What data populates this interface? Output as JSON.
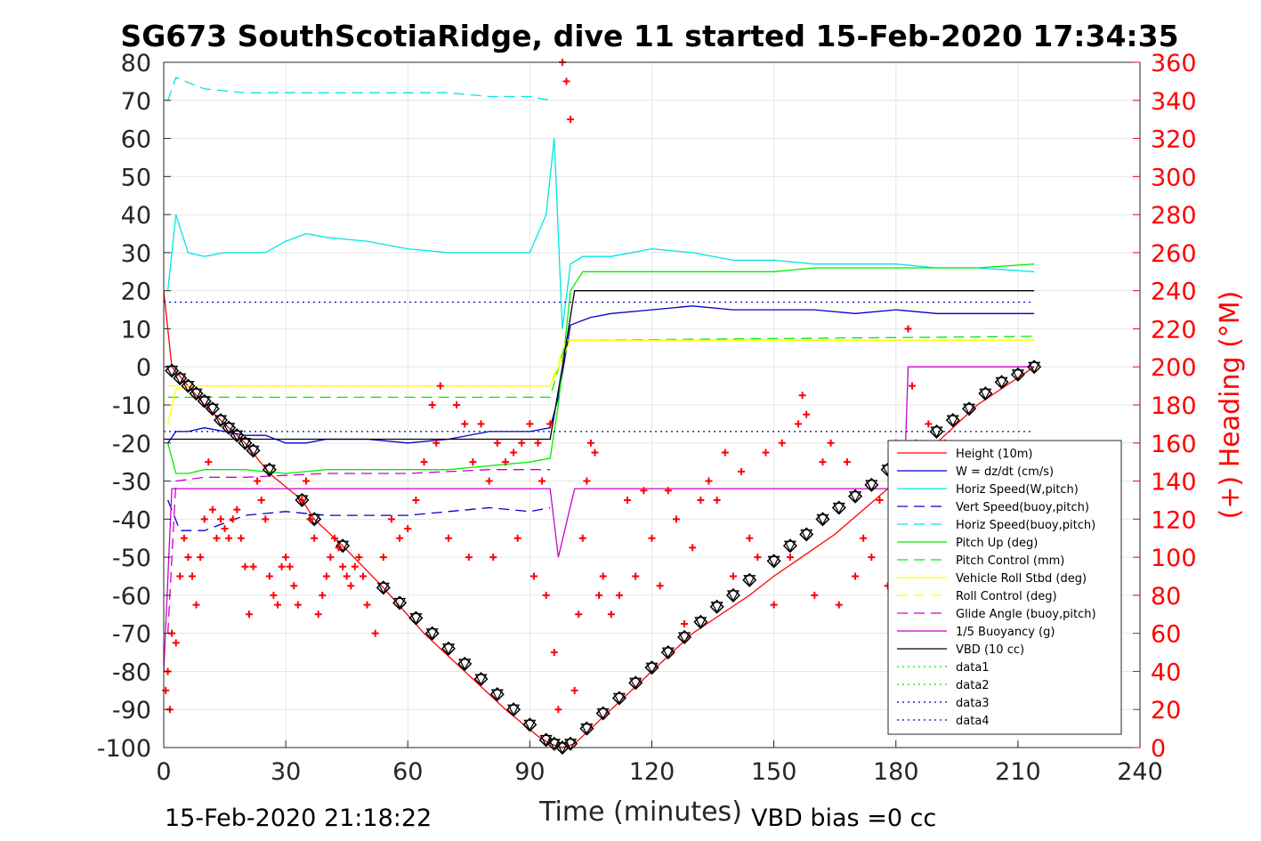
{
  "title": "SG673 SouthScotiaRidge, dive 11 started 15-Feb-2020 17:34:35",
  "footer": {
    "left": "15-Feb-2020 21:18:22",
    "right": "VBD bias =0 cc"
  },
  "colors": {
    "heading": "#ff0000",
    "height": "#ff0000",
    "w": "#0000cd",
    "horiz": "#00e5e5",
    "pitch": "#00ee00",
    "roll": "#ffff00",
    "glide": "#cc00cc",
    "vbd": "#000000",
    "data_green": "#00dd00",
    "data_blue": "#0000aa"
  },
  "chart_data": {
    "type": "line",
    "title": "SG673 SouthScotiaRidge, dive 11 started 15-Feb-2020 17:34:35",
    "xlabel": "Time (minutes)",
    "ylabel": "",
    "ylabel_right": "(+) Heading (°M)",
    "xlim": [
      0,
      240
    ],
    "ylim": [
      -100,
      80
    ],
    "ylim_right": [
      0,
      360
    ],
    "xticks": [
      "0",
      "30",
      "60",
      "90",
      "120",
      "150",
      "180",
      "210",
      "240"
    ],
    "yticks": [
      "80",
      "70",
      "60",
      "50",
      "40",
      "30",
      "20",
      "10",
      "0",
      "-10",
      "-20",
      "-30",
      "-40",
      "-50",
      "-60",
      "-70",
      "-80",
      "-90",
      "-100"
    ],
    "yticks_right": [
      "360",
      "340",
      "320",
      "300",
      "280",
      "260",
      "240",
      "220",
      "200",
      "180",
      "160",
      "140",
      "120",
      "100",
      "80",
      "60",
      "40",
      "20",
      "0"
    ],
    "grid": true,
    "legend_position": "lower-right",
    "series": [
      {
        "name": "Height (10m)",
        "style": "solid",
        "color": "#ff0000",
        "x": [
          0,
          2,
          10,
          20,
          26,
          34,
          37,
          44,
          54,
          64,
          74,
          84,
          92,
          95,
          98,
          101,
          110,
          120,
          130,
          144,
          150,
          165,
          178,
          190,
          200,
          214
        ],
        "y": [
          20,
          0,
          -10,
          -20,
          -28,
          -35,
          -40,
          -47,
          -58,
          -70,
          -80,
          -90,
          -97,
          -99,
          -100,
          -99,
          -90,
          -80,
          -70,
          -60,
          -55,
          -44,
          -32,
          -20,
          -10,
          0
        ]
      },
      {
        "name": "W = dz/dt (cm/s)",
        "style": "solid",
        "color": "#0000cd",
        "x": [
          1,
          3,
          6,
          10,
          15,
          20,
          25,
          30,
          35,
          40,
          50,
          60,
          70,
          80,
          90,
          95,
          97,
          100,
          105,
          110,
          120,
          130,
          140,
          150,
          160,
          170,
          180,
          190,
          200,
          214
        ],
        "y": [
          -20,
          -17,
          -17,
          -16,
          -17,
          -18,
          -18,
          -20,
          -20,
          -19,
          -19,
          -20,
          -19,
          -17,
          -17,
          -16,
          -8,
          11,
          13,
          14,
          15,
          16,
          15,
          15,
          15,
          14,
          15,
          14,
          14,
          14
        ]
      },
      {
        "name": "Horiz Speed(W,pitch)",
        "style": "solid",
        "color": "#00e5e5",
        "x": [
          1,
          3,
          6,
          10,
          15,
          20,
          25,
          30,
          35,
          40,
          50,
          60,
          70,
          80,
          90,
          94,
          96,
          98,
          100,
          103,
          110,
          120,
          130,
          140,
          150,
          160,
          170,
          180,
          190,
          200,
          214
        ],
        "y": [
          20,
          40,
          30,
          29,
          30,
          30,
          30,
          33,
          35,
          34,
          33,
          31,
          30,
          30,
          30,
          40,
          60,
          10,
          27,
          29,
          29,
          31,
          30,
          28,
          28,
          27,
          27,
          27,
          26,
          26,
          25
        ]
      },
      {
        "name": "Vert Speed(buoy,pitch)",
        "style": "dashed",
        "color": "#0000cd",
        "x": [
          1,
          4,
          10,
          15,
          20,
          30,
          40,
          60,
          80,
          90,
          95
        ],
        "y": [
          -35,
          -43,
          -43,
          -41,
          -39,
          -38,
          -39,
          -39,
          -37,
          -38,
          -37
        ]
      },
      {
        "name": "Horiz Speed(buoy,pitch)",
        "style": "dashed",
        "color": "#00e5e5",
        "x": [
          1,
          3,
          10,
          20,
          30,
          40,
          50,
          60,
          70,
          80,
          90,
          95
        ],
        "y": [
          70,
          76,
          73,
          72,
          72,
          72,
          72,
          72,
          72,
          71,
          71,
          70
        ]
      },
      {
        "name": "Pitch Up (deg)",
        "style": "solid",
        "color": "#00ee00",
        "x": [
          1,
          3,
          6,
          10,
          20,
          30,
          40,
          50,
          60,
          70,
          80,
          90,
          95,
          97,
          100,
          103,
          110,
          120,
          130,
          140,
          150,
          160,
          170,
          180,
          190,
          200,
          214
        ],
        "y": [
          -20,
          -28,
          -28,
          -27,
          -27,
          -28,
          -27,
          -27,
          -27,
          -27,
          -26,
          -25,
          -24,
          -10,
          20,
          25,
          25,
          25,
          25,
          25,
          25,
          26,
          26,
          26,
          26,
          26,
          27
        ]
      },
      {
        "name": "Pitch Control (mm)",
        "style": "dashed",
        "color": "#00ee00",
        "x": [
          1,
          4,
          95,
          99,
          101,
          214
        ],
        "y": [
          -8,
          -8,
          -8,
          7,
          7,
          8
        ]
      },
      {
        "name": "Vehicle Roll Stbd (deg)",
        "style": "solid",
        "color": "#ffff00",
        "x": [
          1,
          3,
          6,
          10,
          20,
          40,
          60,
          80,
          95,
          100,
          120,
          140,
          160,
          180,
          200,
          214
        ],
        "y": [
          -15,
          -6,
          -5,
          -5,
          -5,
          -5,
          -5,
          -5,
          -5,
          7,
          7,
          7,
          7,
          7,
          7,
          7
        ]
      },
      {
        "name": "Roll Control (deg)",
        "style": "dashed",
        "color": "#ffff00",
        "x": [
          1,
          3,
          95,
          99,
          214
        ],
        "y": [
          -5,
          -5,
          -5,
          7,
          7
        ]
      },
      {
        "name": "Glide Angle (buoy,pitch)",
        "style": "dashed",
        "color": "#cc00cc",
        "x": [
          1,
          3,
          10,
          20,
          40,
          60,
          80,
          95
        ],
        "y": [
          -70,
          -30,
          -29,
          -29,
          -28,
          -28,
          -27,
          -27
        ]
      },
      {
        "name": "1/5 Buoyancy (g)",
        "style": "solid",
        "color": "#cc00cc",
        "x": [
          0,
          2,
          95,
          97,
          101,
          182,
          183,
          214
        ],
        "y": [
          -80,
          -32,
          -32,
          -50,
          -32,
          -32,
          0,
          0
        ]
      },
      {
        "name": "VBD (10 cc)",
        "style": "solid",
        "color": "#000000",
        "x": [
          0,
          1,
          95,
          98,
          101,
          214
        ],
        "y": [
          -19,
          -19,
          -19,
          0,
          20,
          20
        ]
      },
      {
        "name": "data1",
        "style": "dotted",
        "color": "#00dd00",
        "x": [],
        "y": []
      },
      {
        "name": "data2",
        "style": "dotted",
        "color": "#00dd00",
        "x": [],
        "y": []
      },
      {
        "name": "data3",
        "style": "dotted",
        "color": "#0000aa",
        "x": [
          0,
          214
        ],
        "y": [
          17,
          17
        ]
      },
      {
        "name": "data4",
        "style": "dotted",
        "color": "#0000aa",
        "x": [
          0,
          214
        ],
        "y": [
          -17,
          -17
        ]
      }
    ],
    "height_markers": {
      "x": [
        2,
        4,
        6,
        8,
        10,
        12,
        14,
        16,
        18,
        20,
        22,
        26,
        34,
        37,
        44,
        54,
        58,
        62,
        66,
        70,
        74,
        78,
        82,
        86,
        90,
        94,
        96,
        98,
        100,
        104,
        108,
        112,
        116,
        120,
        124,
        128,
        132,
        136,
        140,
        144,
        150,
        154,
        158,
        162,
        166,
        170,
        174,
        178,
        182,
        186,
        190,
        194,
        198,
        202,
        206,
        210,
        214
      ],
      "y": [
        -1,
        -3,
        -5,
        -7,
        -9,
        -11,
        -14,
        -16,
        -18,
        -20,
        -22,
        -27,
        -35,
        -40,
        -47,
        -58,
        -62,
        -66,
        -70,
        -74,
        -78,
        -82,
        -86,
        -90,
        -94,
        -98,
        -99,
        -100,
        -99,
        -95,
        -91,
        -87,
        -83,
        -79,
        -75,
        -71,
        -67,
        -63,
        -60,
        -56,
        -51,
        -47,
        -44,
        -40,
        -37,
        -34,
        -31,
        -27,
        -24,
        -21,
        -17,
        -14,
        -11,
        -7,
        -4,
        -2,
        0
      ]
    },
    "heading": {
      "axis": "right",
      "marker": "+",
      "name": "(+) Heading (°M)",
      "x": [
        0.5,
        1,
        1.5,
        2,
        3,
        4,
        5,
        6,
        7,
        8,
        9,
        10,
        11,
        12,
        13,
        14,
        15,
        16,
        17,
        18,
        19,
        20,
        21,
        22,
        23,
        24,
        25,
        26,
        27,
        28,
        29,
        30,
        31,
        32,
        33,
        34,
        35,
        36,
        37,
        38,
        39,
        40,
        41,
        42,
        43,
        44,
        45,
        46,
        47,
        48,
        49,
        50,
        52,
        54,
        56,
        58,
        60,
        62,
        64,
        66,
        67,
        68,
        70,
        72,
        74,
        75,
        76,
        78,
        80,
        81,
        82,
        84,
        86,
        87,
        88,
        90,
        91,
        92,
        93,
        94,
        95,
        96,
        97,
        98,
        99,
        100,
        101,
        102,
        103,
        104,
        105,
        106,
        107,
        108,
        110,
        112,
        114,
        116,
        118,
        120,
        122,
        124,
        126,
        128,
        130,
        132,
        134,
        136,
        138,
        140,
        142,
        144,
        146,
        148,
        150,
        152,
        154,
        156,
        157,
        158,
        160,
        162,
        164,
        166,
        168,
        170,
        172,
        174,
        176,
        178,
        180,
        182,
        183,
        184,
        185,
        186,
        188,
        190,
        192,
        194,
        196,
        198,
        200,
        202,
        204,
        206,
        208,
        210,
        212,
        214
      ],
      "y": [
        30,
        40,
        20,
        60,
        55,
        90,
        110,
        100,
        90,
        75,
        100,
        120,
        150,
        125,
        110,
        120,
        115,
        110,
        120,
        125,
        110,
        95,
        70,
        95,
        140,
        130,
        120,
        90,
        80,
        75,
        95,
        100,
        95,
        85,
        75,
        130,
        140,
        120,
        110,
        70,
        80,
        90,
        100,
        110,
        105,
        95,
        90,
        85,
        95,
        100,
        90,
        75,
        60,
        100,
        120,
        110,
        115,
        130,
        150,
        180,
        160,
        190,
        110,
        180,
        170,
        100,
        150,
        170,
        140,
        100,
        160,
        150,
        155,
        110,
        160,
        170,
        90,
        160,
        140,
        80,
        170,
        50,
        20,
        360,
        350,
        330,
        30,
        70,
        110,
        140,
        160,
        155,
        80,
        90,
        70,
        80,
        130,
        90,
        135,
        110,
        85,
        135,
        120,
        65,
        105,
        130,
        140,
        130,
        155,
        90,
        145,
        110,
        100,
        155,
        75,
        160,
        100,
        170,
        185,
        175,
        80,
        150,
        160,
        75,
        150,
        90,
        110,
        100,
        130,
        85,
        160,
        150,
        220,
        190,
        160,
        80,
        170,
        80,
        160,
        70,
        150,
        90,
        150,
        70,
        130,
        110,
        130,
        150,
        120,
        140
      ]
    }
  },
  "legend": [
    {
      "label": "Height (10m)",
      "color": "#ff0000",
      "dash": "solid"
    },
    {
      "label": "W = dz/dt (cm/s)",
      "color": "#0000cd",
      "dash": "solid"
    },
    {
      "label": "Horiz Speed(W,pitch)",
      "color": "#00e5e5",
      "dash": "solid"
    },
    {
      "label": "Vert Speed(buoy,pitch)",
      "color": "#0000cd",
      "dash": "dashed"
    },
    {
      "label": "Horiz Speed(buoy,pitch)",
      "color": "#00e5e5",
      "dash": "dashed"
    },
    {
      "label": "Pitch Up (deg)",
      "color": "#00ee00",
      "dash": "solid"
    },
    {
      "label": "Pitch Control (mm)",
      "color": "#00ee00",
      "dash": "dashed"
    },
    {
      "label": "Vehicle Roll Stbd (deg)",
      "color": "#ffff00",
      "dash": "solid"
    },
    {
      "label": "Roll Control (deg)",
      "color": "#ffff00",
      "dash": "dashed"
    },
    {
      "label": "Glide Angle (buoy,pitch)",
      "color": "#cc00cc",
      "dash": "dashed"
    },
    {
      "label": "1/5 Buoyancy (g)",
      "color": "#cc00cc",
      "dash": "solid"
    },
    {
      "label": "VBD (10 cc)",
      "color": "#000000",
      "dash": "solid"
    },
    {
      "label": "data1",
      "color": "#00dd00",
      "dash": "dotted"
    },
    {
      "label": "data2",
      "color": "#00dd00",
      "dash": "dotted"
    },
    {
      "label": "data3",
      "color": "#0000aa",
      "dash": "dotted"
    },
    {
      "label": "data4",
      "color": "#0000aa",
      "dash": "dotted"
    }
  ]
}
